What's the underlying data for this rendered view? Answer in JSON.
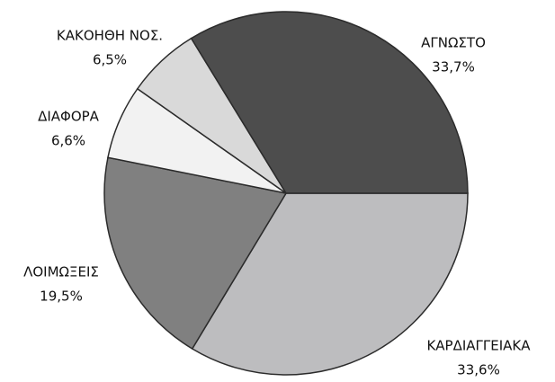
{
  "chart_data": {
    "type": "pie",
    "categories": [
      "ΚΑΡΔΙΑΓΓΕΙΑΚΑ",
      "ΛΟΙΜΩΞΕΙΣ",
      "ΔΙΑΦΟΡΑ",
      "ΚΑΚΟΗΘΗ ΝΟΣ.",
      "ΑΓΝΩΣΤΟ"
    ],
    "values": [
      33.6,
      19.5,
      6.6,
      6.5,
      33.7
    ],
    "value_labels": [
      "33,6%",
      "19,5%",
      "6,6%",
      "6,5%",
      "33,7%"
    ],
    "colors": [
      "#bdbdbf",
      "#808080",
      "#f2f2f2",
      "#d9d9d9",
      "#4d4d4d"
    ]
  }
}
